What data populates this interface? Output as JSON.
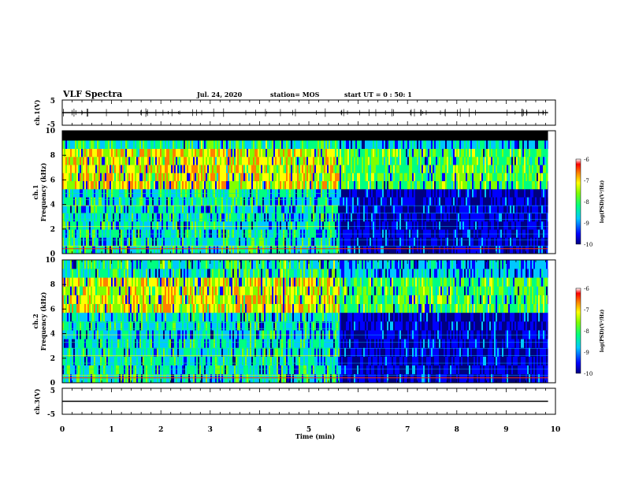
{
  "header": {
    "title": "VLF Spectra",
    "date": "Jul. 24, 2020",
    "station": "station= MOS",
    "start": "start UT =   0 : 50: 1"
  },
  "chart_data": [
    {
      "type": "line",
      "panel": "ch1-waveform",
      "ylabel": "ch.1(V)",
      "ylim": [
        -5,
        5
      ],
      "yticks": [
        "5",
        "-5"
      ],
      "series": [
        {
          "x": [
            0,
            9.85
          ],
          "y": [
            0,
            0
          ]
        }
      ]
    },
    {
      "type": "heatmap",
      "panel": "ch1-spectrogram",
      "ylabel": "ch.1",
      "ylabel2": "Frequency (kHz)",
      "ylim": [
        0,
        10
      ],
      "yticks": [
        "0",
        "2",
        "4",
        "6",
        "8",
        "10"
      ],
      "xlim": [
        0,
        10
      ],
      "data_end_min": 9.85,
      "saturated_band_khz": [
        9.2,
        10
      ],
      "emission_band_khz": [
        5.5,
        8.5
      ],
      "change_min": 5.6,
      "colorbar": {
        "label": "log(PSD)(V²/Hz)",
        "range": [
          -10,
          -6
        ],
        "ticks": [
          "-6",
          "-7",
          "-8",
          "-9",
          "-10"
        ]
      }
    },
    {
      "type": "heatmap",
      "panel": "ch2-spectrogram",
      "ylabel": "ch.2",
      "ylabel2": "Frequency (kHz)",
      "ylim": [
        0,
        10
      ],
      "yticks": [
        "0",
        "2",
        "4",
        "6",
        "8",
        "10"
      ],
      "xlim": [
        0,
        10
      ],
      "data_end_min": 9.85,
      "emission_band_khz": [
        5.5,
        8.5
      ],
      "change_min": 5.6,
      "colorbar": {
        "label": "log(PSD)(V²/Hz)",
        "range": [
          -10,
          -6
        ],
        "ticks": [
          "-6",
          "-7",
          "-8",
          "-9",
          "-10"
        ]
      }
    },
    {
      "type": "line",
      "panel": "ch3-waveform",
      "ylabel": "ch.3(V)",
      "ylim": [
        -5,
        5
      ],
      "yticks": [
        "5",
        "-5"
      ],
      "xlabel": "Time (min)",
      "xlim": [
        0,
        10
      ],
      "xticks": [
        "0",
        "1",
        "2",
        "3",
        "4",
        "5",
        "6",
        "7",
        "8",
        "9",
        "10"
      ],
      "series": [
        {
          "x": [
            0,
            9.85
          ],
          "y": [
            0,
            0
          ]
        }
      ]
    }
  ],
  "colors": {
    "colormap": [
      "#000080",
      "#0000ff",
      "#00c8ff",
      "#00ff80",
      "#80ff00",
      "#ffff00",
      "#ff8000",
      "#ff0000",
      "#ffffff"
    ],
    "background": "#000000",
    "line": "#000000"
  }
}
